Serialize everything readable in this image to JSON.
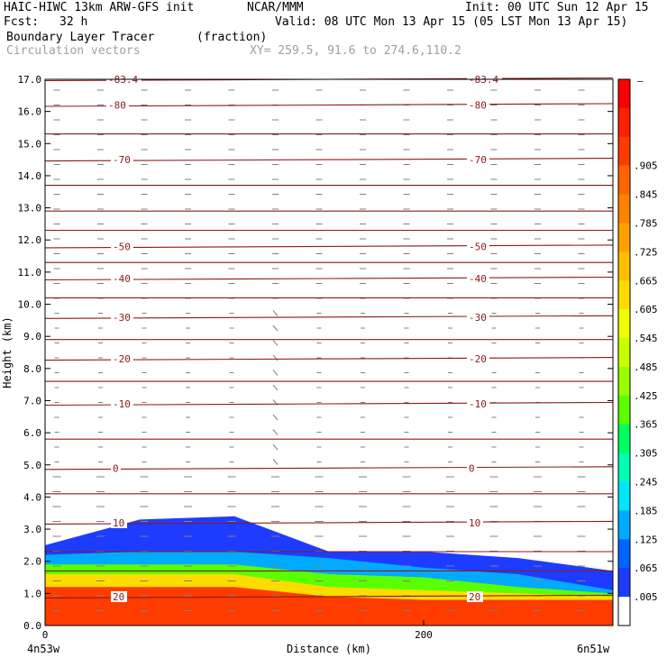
{
  "header": {
    "model": "HAIC-HIWC 13km ARW-GFS init",
    "org": "NCAR/MMM",
    "init": "Init: 00 UTC Sun 12 Apr 15",
    "fcst_label": "Fcst:",
    "fcst_value": "32 h",
    "valid": "Valid: 08 UTC Mon 13 Apr 15 (05 LST Mon 13 Apr 15)",
    "field": "Boundary Layer Tracer",
    "field_units": "(fraction)",
    "vectors": "Circulation vectors",
    "xy_range": "XY= 259.5, 91.6 to 274.6,110.2"
  },
  "colors": {
    "contour": "#8b1a1a",
    "vector": "#808080",
    "axis": "#000000",
    "vector_title": "#a0a0a0"
  },
  "chart_data": {
    "type": "heatmap",
    "title": "Boundary Layer Tracer",
    "xlabel": "Distance (km)",
    "ylabel": "Height (km)",
    "xlim": [
      0,
      300
    ],
    "ylim": [
      0.0,
      17.0
    ],
    "x_ticks": [
      {
        "value": 0,
        "label": "0"
      },
      {
        "value": 200,
        "label": "200"
      }
    ],
    "x_endpoint_labels": {
      "left": "4n53w",
      "right": "6n51w"
    },
    "y_ticks": [
      "0.0",
      "1.0",
      "2.0",
      "3.0",
      "4.0",
      "5.0",
      "6.0",
      "7.0",
      "8.0",
      "9.0",
      "10.0",
      "11.0",
      "12.0",
      "13.0",
      "14.0",
      "15.0",
      "16.0",
      "17.0"
    ],
    "colorbar": {
      "top_label": "–",
      "levels": [
        ".905",
        ".845",
        ".785",
        ".725",
        ".665",
        ".605",
        ".545",
        ".485",
        ".425",
        ".365",
        ".305",
        ".245",
        ".185",
        ".125",
        ".065",
        ".005"
      ],
      "colors": [
        "#ff0000",
        "#ff2000",
        "#ff3c00",
        "#ff6400",
        "#ff8200",
        "#ffa000",
        "#ffbe00",
        "#ffdc00",
        "#f0ff00",
        "#c8ff00",
        "#96ff00",
        "#5aff00",
        "#00ff60",
        "#00ffb4",
        "#00e6ff",
        "#00aaff",
        "#0064ff",
        "#1e3cff",
        "#ffffff"
      ]
    },
    "tracer_field": {
      "x": [
        0,
        50,
        100,
        150,
        200,
        250,
        300
      ],
      "layers": [
        {
          "fraction": 0.005,
          "top_km": [
            2.5,
            3.3,
            3.4,
            2.3,
            2.3,
            2.1,
            1.7
          ]
        },
        {
          "fraction": 0.125,
          "top_km": [
            2.2,
            2.3,
            2.3,
            2.1,
            1.8,
            1.6,
            1.1
          ]
        },
        {
          "fraction": 0.365,
          "top_km": [
            1.9,
            1.9,
            1.9,
            1.6,
            1.5,
            1.2,
            1.0
          ]
        },
        {
          "fraction": 0.605,
          "top_km": [
            1.6,
            1.6,
            1.6,
            1.2,
            1.1,
            1.0,
            0.9
          ]
        },
        {
          "fraction": 0.905,
          "top_km": [
            1.2,
            1.2,
            1.2,
            0.9,
            0.8,
            0.8,
            0.8
          ]
        }
      ]
    },
    "temperature_contours": [
      {
        "label": "-83.4",
        "y_km": 17.0
      },
      {
        "label": "-80",
        "y_km": 16.2
      },
      {
        "label": "",
        "y_km": 15.3
      },
      {
        "label": "-70",
        "y_km": 14.5
      },
      {
        "label": "",
        "y_km": 13.7
      },
      {
        "label": "",
        "y_km": 12.9
      },
      {
        "label": "",
        "y_km": 12.3
      },
      {
        "label": "-50",
        "y_km": 11.8
      },
      {
        "label": "",
        "y_km": 11.3
      },
      {
        "label": "-40",
        "y_km": 10.8
      },
      {
        "label": "",
        "y_km": 10.2
      },
      {
        "label": "-30",
        "y_km": 9.6
      },
      {
        "label": "",
        "y_km": 8.9
      },
      {
        "label": "-20",
        "y_km": 8.3
      },
      {
        "label": "",
        "y_km": 7.6
      },
      {
        "label": "-10",
        "y_km": 6.9
      },
      {
        "label": "",
        "y_km": 5.8
      },
      {
        "label": "0",
        "y_km": 4.9
      },
      {
        "label": "",
        "y_km": 4.1
      },
      {
        "label": "10",
        "y_km": 3.2
      },
      {
        "label": "",
        "y_km": 2.3
      },
      {
        "label": "",
        "y_km": 1.7
      },
      {
        "label": "20",
        "y_km": 0.9
      }
    ],
    "grid": false,
    "legend": "colorbar-right"
  }
}
